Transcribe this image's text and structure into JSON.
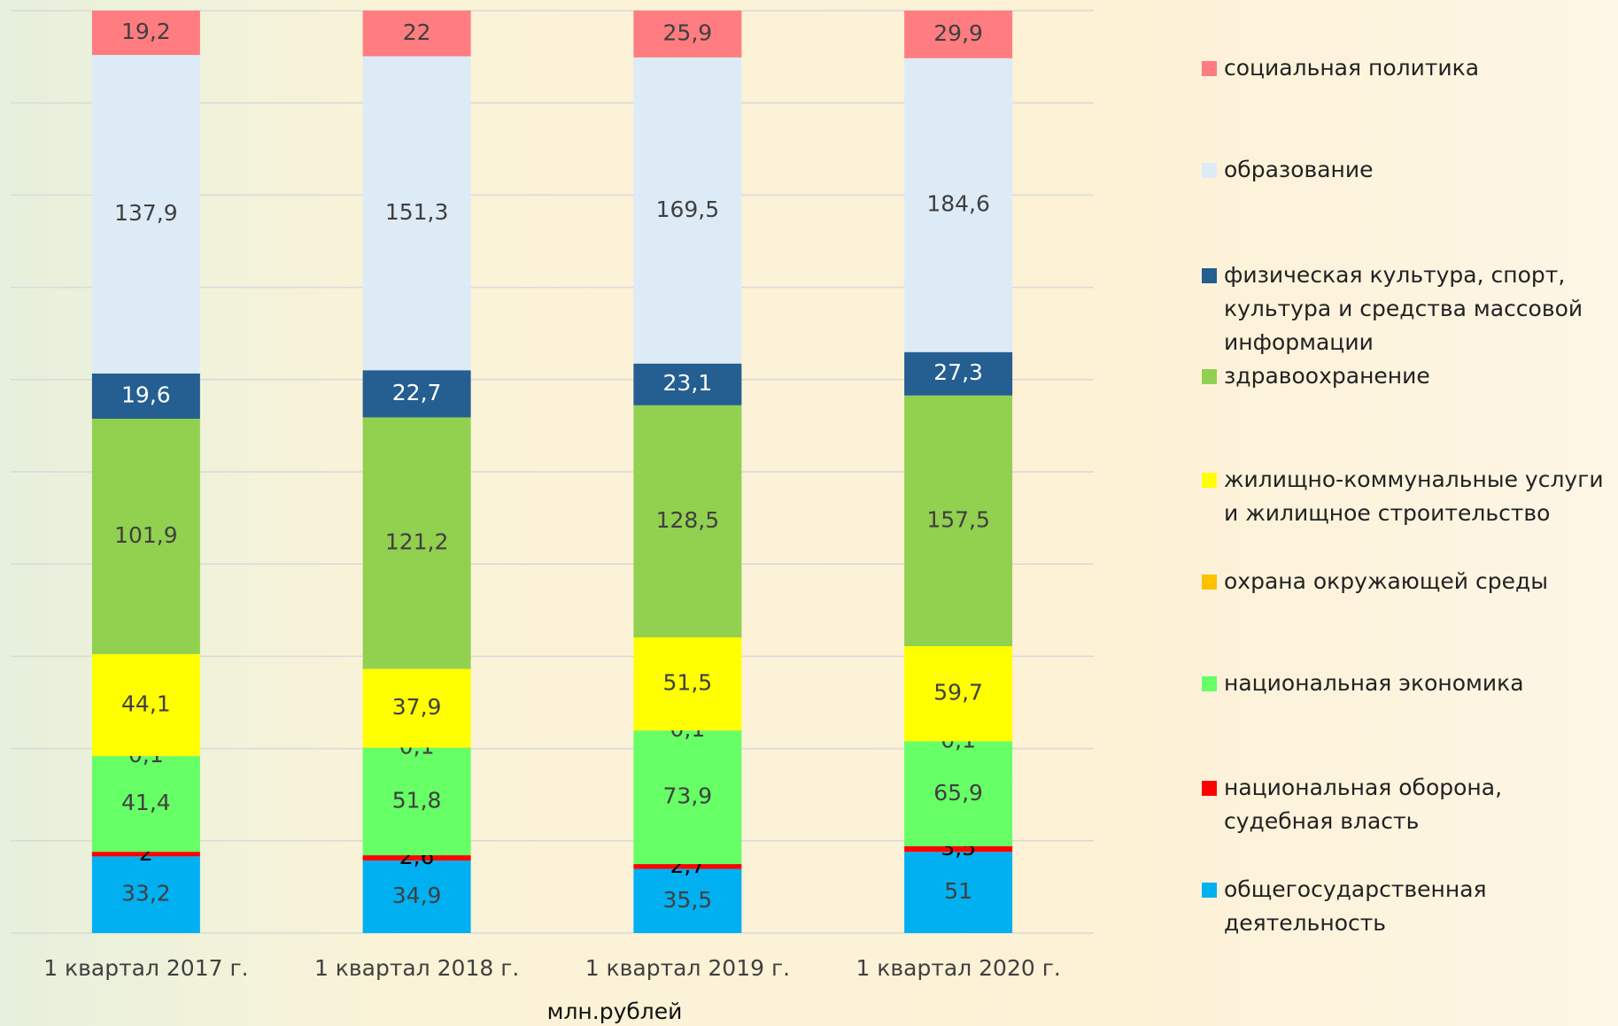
{
  "chart_data": {
    "type": "bar",
    "stacked": "percent",
    "xlabel": "млн.рублей",
    "categories": [
      "1 квартал 2017 г.",
      "1 квартал 2018 г.",
      "1 квартал 2019 г.",
      "1 квартал 2020 г."
    ],
    "ylim": [
      0,
      100
    ],
    "yticks": [
      0,
      10,
      20,
      30,
      40,
      50,
      60,
      70,
      80,
      90,
      100
    ],
    "grid": true,
    "legend": "right",
    "series": [
      {
        "name": "общегосударственная деятельность",
        "color": "#00b0f0",
        "values": [
          33.2,
          34.9,
          35.5,
          51
        ],
        "value_labels": [
          "33,2",
          "34,9",
          "35,5",
          "51"
        ]
      },
      {
        "name": "национальная оборона, судебная власть",
        "color": "#ff0000",
        "values": [
          2,
          2.6,
          2.7,
          3.5
        ],
        "value_labels": [
          "2",
          "2,6",
          "2,7",
          "3,5"
        ]
      },
      {
        "name": "национальная экономика",
        "color": "#66ff66",
        "values": [
          41.4,
          51.8,
          73.9,
          65.9
        ],
        "value_labels": [
          "41,4",
          "51,8",
          "73,9",
          "65,9"
        ]
      },
      {
        "name": "охрана окружающей среды",
        "color": "#ffc000",
        "values": [
          0.1,
          0.1,
          0.1,
          0.1
        ],
        "value_labels": [
          "0,1",
          "0,1",
          "0,1",
          "0,1"
        ]
      },
      {
        "name": "жилищно-коммунальные услуги и жилищное строительство",
        "color": "#ffff00",
        "values": [
          44.1,
          37.9,
          51.5,
          59.7
        ],
        "value_labels": [
          "44,1",
          "37,9",
          "51,5",
          "59,7"
        ]
      },
      {
        "name": "здравоохранение",
        "color": "#92d050",
        "values": [
          101.9,
          121.2,
          128.5,
          157.5
        ],
        "value_labels": [
          "101,9",
          "121,2",
          "128,5",
          "157,5"
        ]
      },
      {
        "name": "физическая культура, спорт, культура и средства массовой информации",
        "color": "#255e91",
        "values": [
          19.6,
          22.7,
          23.1,
          27.3
        ],
        "value_labels": [
          "19,6",
          "22,7",
          "23,1",
          "27,3"
        ]
      },
      {
        "name": "образование",
        "color": "#ddebf7",
        "values": [
          137.9,
          151.3,
          169.5,
          184.6
        ],
        "value_labels": [
          "137,9",
          "151,3",
          "169,5",
          "184,6"
        ]
      },
      {
        "name": "социальная политика",
        "color": "#ff7c80",
        "values": [
          19.2,
          22,
          25.9,
          29.9
        ],
        "value_labels": [
          "19,2",
          "22",
          "25,9",
          "29,9"
        ]
      }
    ]
  }
}
